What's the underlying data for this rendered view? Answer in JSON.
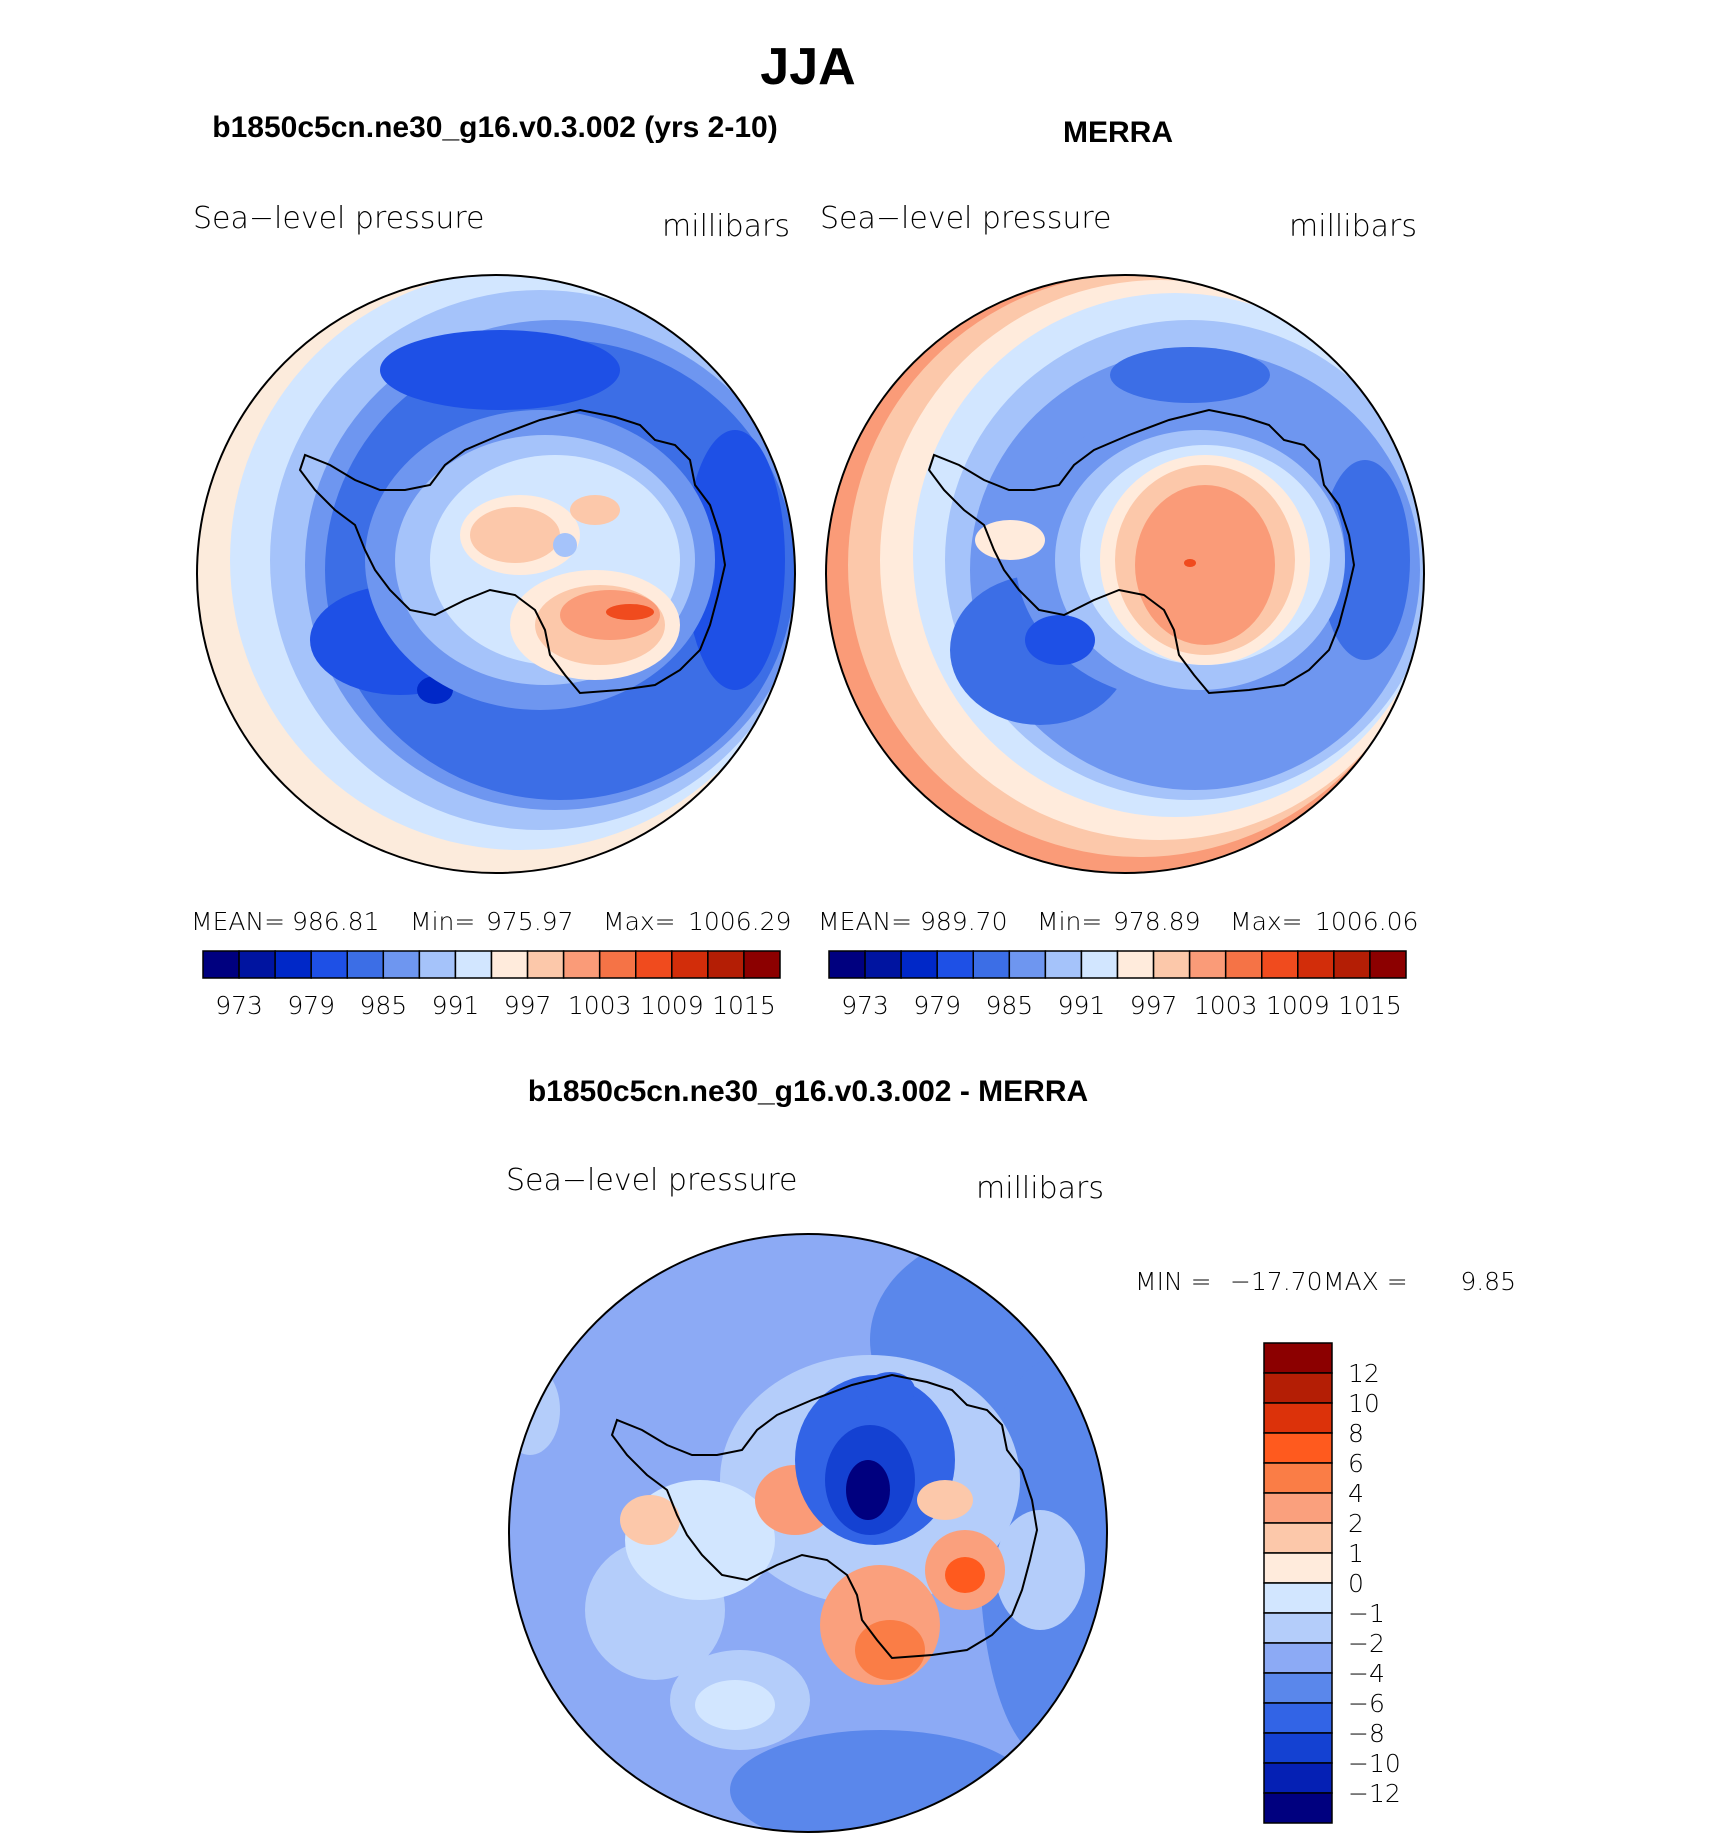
{
  "title": "JJA",
  "panels": [
    {
      "case_title": "b1850c5cn.ne30_g16.v0.3.002 (yrs 2-10)",
      "variable": "Sea−level pressure",
      "units": "millibars",
      "stats": {
        "mean_label": "MEAN=",
        "mean": "986.81",
        "min_label": "Min=",
        "min": "975.97",
        "max_label": "Max=",
        "max": "1006.29"
      }
    },
    {
      "case_title": "MERRA",
      "variable": "Sea−level pressure",
      "units": "millibars",
      "stats": {
        "mean_label": "MEAN=",
        "mean": "989.70",
        "min_label": "Min=",
        "min": "978.89",
        "max_label": "Max=",
        "max": "1006.06"
      }
    }
  ],
  "colorbar_top": {
    "colors": [
      "#00007f",
      "#0014a0",
      "#0028c8",
      "#1e50e6",
      "#3c6ee6",
      "#6e96f0",
      "#a5c3fa",
      "#d2e6ff",
      "#ffebdc",
      "#fcc8aa",
      "#fa9b78",
      "#f57346",
      "#f04b1e",
      "#d22d0a",
      "#b41e05",
      "#8c0000"
    ],
    "labels": [
      "973",
      "979",
      "985",
      "991",
      "997",
      "1003",
      "1009",
      "1015"
    ]
  },
  "difference": {
    "title": "b1850c5cn.ne30_g16.v0.3.002 - MERRA",
    "variable": "Sea−level pressure",
    "units": "millibars",
    "min_label": "MIN =",
    "min": "−17.70",
    "max_label": "MAX =",
    "max": "9.85"
  },
  "colorbar_diff": {
    "colors_top_to_bottom": [
      "#8c0000",
      "#b41e05",
      "#dc320a",
      "#ff5a1e",
      "#fa7d46",
      "#faa07d",
      "#fcc8aa",
      "#ffebdc",
      "#d2e6ff",
      "#b4cdfa",
      "#8caaf5",
      "#5a87eb",
      "#3264e6",
      "#1441d2",
      "#0520b4",
      "#00007f"
    ],
    "labels": [
      "12",
      "10",
      "8",
      "6",
      "4",
      "2",
      "1",
      "0",
      "−1",
      "−2",
      "−4",
      "−6",
      "−8",
      "−10",
      "−12"
    ]
  },
  "chart_data": [
    {
      "type": "heatmap",
      "title": "b1850c5cn.ne30_g16.v0.3.002 (yrs 2-10)",
      "field": "Sea-level pressure",
      "units": "millibars",
      "projection": "south-polar stereographic",
      "mean": 986.81,
      "min": 975.97,
      "max": 1006.29,
      "contour_levels": [
        973,
        976,
        979,
        982,
        985,
        988,
        991,
        994,
        997,
        1000,
        1003,
        1006,
        1009,
        1012,
        1015
      ]
    },
    {
      "type": "heatmap",
      "title": "MERRA",
      "field": "Sea-level pressure",
      "units": "millibars",
      "projection": "south-polar stereographic",
      "mean": 989.7,
      "min": 978.89,
      "max": 1006.06,
      "contour_levels": [
        973,
        976,
        979,
        982,
        985,
        988,
        991,
        994,
        997,
        1000,
        1003,
        1006,
        1009,
        1012,
        1015
      ]
    },
    {
      "type": "heatmap",
      "title": "b1850c5cn.ne30_g16.v0.3.002 - MERRA",
      "field": "Sea-level pressure",
      "units": "millibars",
      "projection": "south-polar stereographic",
      "min": -17.7,
      "max": 9.85,
      "contour_levels": [
        -12,
        -10,
        -8,
        -6,
        -4,
        -2,
        -1,
        0,
        1,
        2,
        4,
        6,
        8,
        10,
        12
      ]
    }
  ]
}
